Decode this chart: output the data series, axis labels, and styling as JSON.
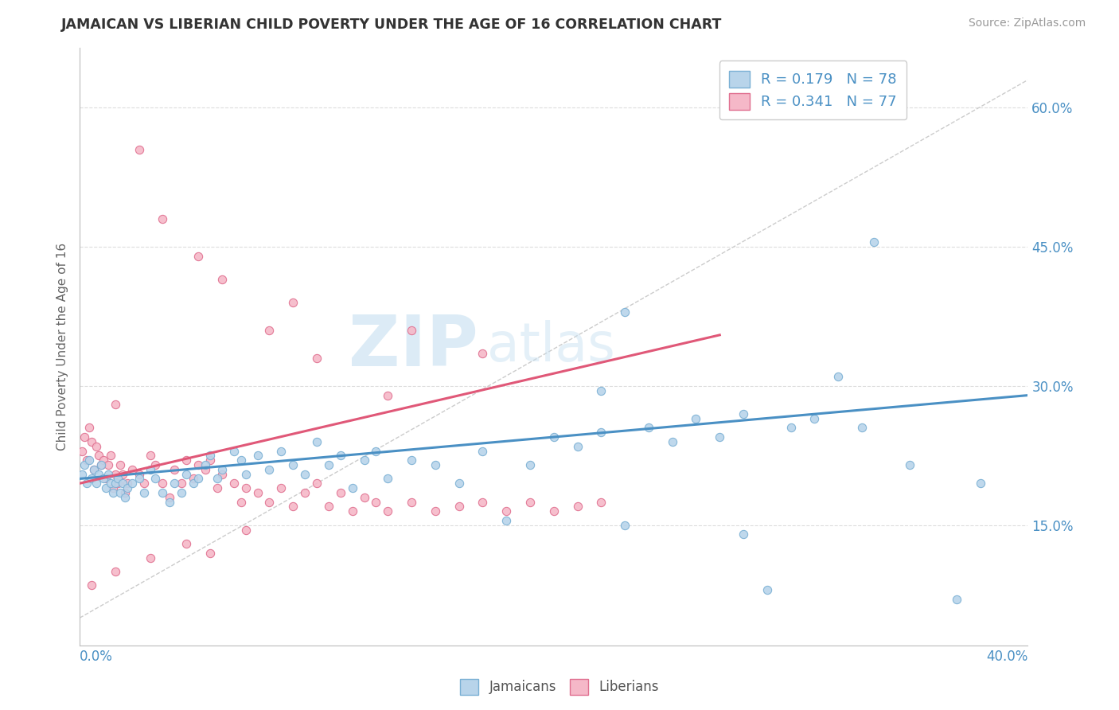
{
  "title": "JAMAICAN VS LIBERIAN CHILD POVERTY UNDER THE AGE OF 16 CORRELATION CHART",
  "source": "Source: ZipAtlas.com",
  "xlabel_bottom_left": "0.0%",
  "xlabel_bottom_right": "40.0%",
  "ylabel": "Child Poverty Under the Age of 16",
  "ytick_labels": [
    "15.0%",
    "30.0%",
    "45.0%",
    "60.0%"
  ],
  "ytick_values": [
    0.15,
    0.3,
    0.45,
    0.6
  ],
  "xmin": 0.0,
  "xmax": 0.4,
  "ymin": 0.02,
  "ymax": 0.665,
  "jamaican_color": "#b8d4ea",
  "liberian_color": "#f5b8c8",
  "jamaican_edge_color": "#7ab0d4",
  "liberian_edge_color": "#e07090",
  "jamaican_line_color": "#4a90c4",
  "liberian_line_color": "#e05878",
  "R_jamaican": 0.179,
  "N_jamaican": 78,
  "R_liberian": 0.341,
  "N_liberian": 77,
  "legend_jamaican_label": "Jamaicans",
  "legend_liberian_label": "Liberians",
  "watermark_zip": "ZIP",
  "watermark_atlas": "atlas",
  "title_color": "#333333",
  "axis_color": "#4a90c4",
  "legend_text_color": "#4a90c4",
  "ref_line_color": "#cccccc",
  "grid_color": "#dddddd",
  "jamaican_x": [
    0.001,
    0.002,
    0.003,
    0.004,
    0.005,
    0.006,
    0.007,
    0.008,
    0.009,
    0.01,
    0.011,
    0.012,
    0.013,
    0.014,
    0.015,
    0.016,
    0.017,
    0.018,
    0.019,
    0.02,
    0.022,
    0.025,
    0.027,
    0.03,
    0.032,
    0.035,
    0.038,
    0.04,
    0.043,
    0.045,
    0.048,
    0.05,
    0.053,
    0.055,
    0.058,
    0.06,
    0.065,
    0.068,
    0.07,
    0.075,
    0.08,
    0.085,
    0.09,
    0.095,
    0.1,
    0.105,
    0.11,
    0.115,
    0.12,
    0.125,
    0.13,
    0.14,
    0.15,
    0.16,
    0.17,
    0.18,
    0.19,
    0.2,
    0.21,
    0.22,
    0.23,
    0.24,
    0.25,
    0.26,
    0.27,
    0.28,
    0.29,
    0.3,
    0.31,
    0.32,
    0.33,
    0.35,
    0.37,
    0.38,
    0.23,
    0.335,
    0.22,
    0.28
  ],
  "jamaican_y": [
    0.205,
    0.215,
    0.195,
    0.22,
    0.2,
    0.21,
    0.195,
    0.205,
    0.215,
    0.2,
    0.19,
    0.205,
    0.195,
    0.185,
    0.195,
    0.2,
    0.185,
    0.195,
    0.18,
    0.19,
    0.195,
    0.2,
    0.185,
    0.21,
    0.2,
    0.185,
    0.175,
    0.195,
    0.185,
    0.205,
    0.195,
    0.2,
    0.215,
    0.225,
    0.2,
    0.21,
    0.23,
    0.22,
    0.205,
    0.225,
    0.21,
    0.23,
    0.215,
    0.205,
    0.24,
    0.215,
    0.225,
    0.19,
    0.22,
    0.23,
    0.2,
    0.22,
    0.215,
    0.195,
    0.23,
    0.155,
    0.215,
    0.245,
    0.235,
    0.25,
    0.15,
    0.255,
    0.24,
    0.265,
    0.245,
    0.14,
    0.08,
    0.255,
    0.265,
    0.31,
    0.255,
    0.215,
    0.07,
    0.195,
    0.38,
    0.455,
    0.295,
    0.27
  ],
  "liberian_x": [
    0.001,
    0.002,
    0.003,
    0.004,
    0.005,
    0.006,
    0.007,
    0.008,
    0.009,
    0.01,
    0.011,
    0.012,
    0.013,
    0.014,
    0.015,
    0.016,
    0.017,
    0.018,
    0.019,
    0.02,
    0.022,
    0.025,
    0.027,
    0.03,
    0.032,
    0.035,
    0.038,
    0.04,
    0.043,
    0.045,
    0.048,
    0.05,
    0.053,
    0.055,
    0.058,
    0.06,
    0.065,
    0.068,
    0.07,
    0.075,
    0.08,
    0.085,
    0.09,
    0.095,
    0.1,
    0.105,
    0.11,
    0.115,
    0.12,
    0.125,
    0.13,
    0.14,
    0.15,
    0.16,
    0.17,
    0.18,
    0.19,
    0.2,
    0.21,
    0.22,
    0.025,
    0.035,
    0.06,
    0.09,
    0.14,
    0.17,
    0.05,
    0.08,
    0.1,
    0.13,
    0.005,
    0.015,
    0.03,
    0.045,
    0.055,
    0.07,
    0.015
  ],
  "liberian_y": [
    0.23,
    0.245,
    0.22,
    0.255,
    0.24,
    0.21,
    0.235,
    0.225,
    0.215,
    0.22,
    0.2,
    0.215,
    0.225,
    0.19,
    0.205,
    0.195,
    0.215,
    0.205,
    0.185,
    0.195,
    0.21,
    0.205,
    0.195,
    0.225,
    0.215,
    0.195,
    0.18,
    0.21,
    0.195,
    0.22,
    0.2,
    0.215,
    0.21,
    0.22,
    0.19,
    0.205,
    0.195,
    0.175,
    0.19,
    0.185,
    0.175,
    0.19,
    0.17,
    0.185,
    0.195,
    0.17,
    0.185,
    0.165,
    0.18,
    0.175,
    0.165,
    0.175,
    0.165,
    0.17,
    0.175,
    0.165,
    0.175,
    0.165,
    0.17,
    0.175,
    0.555,
    0.48,
    0.415,
    0.39,
    0.36,
    0.335,
    0.44,
    0.36,
    0.33,
    0.29,
    0.085,
    0.1,
    0.115,
    0.13,
    0.12,
    0.145,
    0.28
  ]
}
